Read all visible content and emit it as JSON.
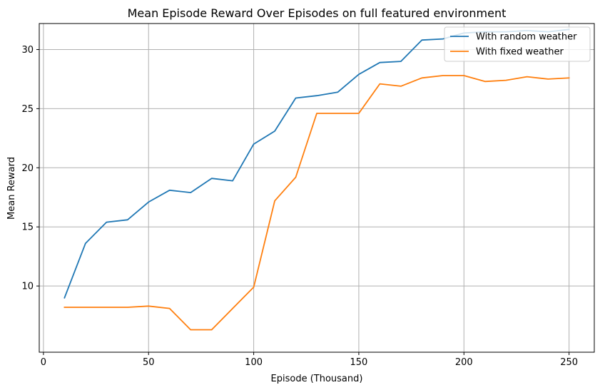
{
  "chart_data": {
    "type": "line",
    "title": "Mean Episode Reward Over Episodes on full featured environment",
    "xlabel": "Episode (Thousand)",
    "ylabel": "Mean Reward",
    "xlim": [
      -2,
      262
    ],
    "ylim": [
      4.4,
      32.2
    ],
    "xticks": [
      0,
      50,
      100,
      150,
      200,
      250
    ],
    "yticks": [
      10,
      15,
      20,
      25,
      30
    ],
    "grid": true,
    "legend_position": "top-right",
    "series": [
      {
        "name": "With random weather",
        "color": "#1f77b4",
        "x": [
          10,
          20,
          30,
          40,
          50,
          60,
          70,
          80,
          90,
          100,
          110,
          120,
          130,
          140,
          150,
          160,
          170,
          180,
          190,
          200,
          210,
          220,
          230,
          240,
          250
        ],
        "y": [
          9.0,
          13.6,
          15.4,
          15.6,
          17.1,
          18.1,
          17.9,
          19.1,
          18.9,
          22.0,
          23.1,
          25.9,
          26.1,
          26.4,
          27.9,
          28.9,
          29.0,
          30.8,
          30.9,
          31.4,
          31.5,
          31.5,
          31.6,
          31.5,
          31.7
        ]
      },
      {
        "name": "With fixed weather",
        "color": "#ff7f0e",
        "x": [
          10,
          20,
          30,
          40,
          50,
          60,
          70,
          80,
          90,
          100,
          110,
          120,
          130,
          140,
          150,
          160,
          170,
          180,
          190,
          200,
          210,
          220,
          230,
          240,
          250
        ],
        "y": [
          8.2,
          8.2,
          8.2,
          8.2,
          8.3,
          8.1,
          6.3,
          6.3,
          8.1,
          9.9,
          17.2,
          19.2,
          24.6,
          24.6,
          24.6,
          27.1,
          26.9,
          27.6,
          27.8,
          27.8,
          27.3,
          27.4,
          27.7,
          27.5,
          27.6
        ]
      }
    ]
  }
}
